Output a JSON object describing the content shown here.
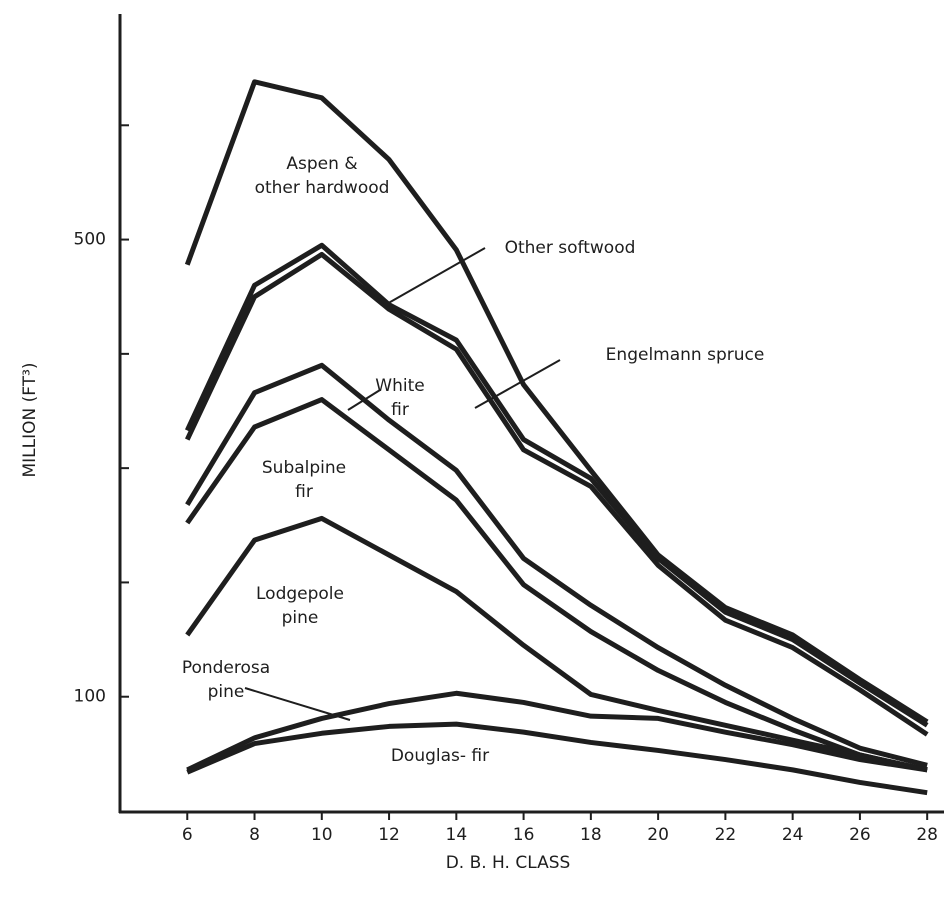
{
  "chart_data": {
    "type": "stacked-line",
    "x_label": "D. B. H. CLASS",
    "y_label": "MILLION (FT³)",
    "x": [
      6,
      8,
      10,
      12,
      14,
      16,
      18,
      20,
      22,
      24,
      26,
      28
    ],
    "xlim": [
      4,
      28.5
    ],
    "xticks": [
      6,
      8,
      10,
      12,
      14,
      16,
      18,
      20,
      22,
      24,
      26,
      28
    ],
    "ylim": [
      0,
      700
    ],
    "yticks": [
      100,
      500
    ],
    "minor_yticks": [
      200,
      300,
      400,
      600
    ],
    "color": "#1e1e1e",
    "series": [
      {
        "name": "Douglas- fir",
        "values": [
          34,
          59,
          68,
          74,
          76,
          69,
          60,
          53,
          45,
          36,
          25,
          16
        ]
      },
      {
        "name": "Ponderosa pine",
        "values": [
          2,
          5,
          13,
          20,
          27,
          26,
          23,
          28,
          24,
          22,
          20,
          20
        ]
      },
      {
        "name": "Lodgepole pine",
        "values": [
          118,
          173,
          175,
          130,
          89,
          50,
          19,
          7,
          6,
          4,
          4,
          0
        ]
      },
      {
        "name": "Subalpine fir",
        "values": [
          98,
          99,
          104,
          92,
          80,
          53,
          55,
          35,
          20,
          9,
          0,
          0
        ]
      },
      {
        "name": "White fir",
        "values": [
          16,
          30,
          30,
          26,
          26,
          23,
          23,
          20,
          15,
          10,
          6,
          4
        ]
      },
      {
        "name": "Engelmann spruce",
        "values": [
          57,
          84,
          97,
          97,
          106,
          95,
          104,
          72,
          57,
          62,
          51,
          27
        ]
      },
      {
        "name": "Other softwood",
        "values": [
          8,
          10,
          8,
          4,
          8,
          9,
          7,
          6,
          7,
          7,
          6,
          8
        ]
      },
      {
        "name": "Aspen & other hardwood",
        "values": [
          145,
          178,
          129,
          127,
          79,
          48,
          7,
          3,
          4,
          4,
          3,
          3
        ]
      }
    ]
  }
}
